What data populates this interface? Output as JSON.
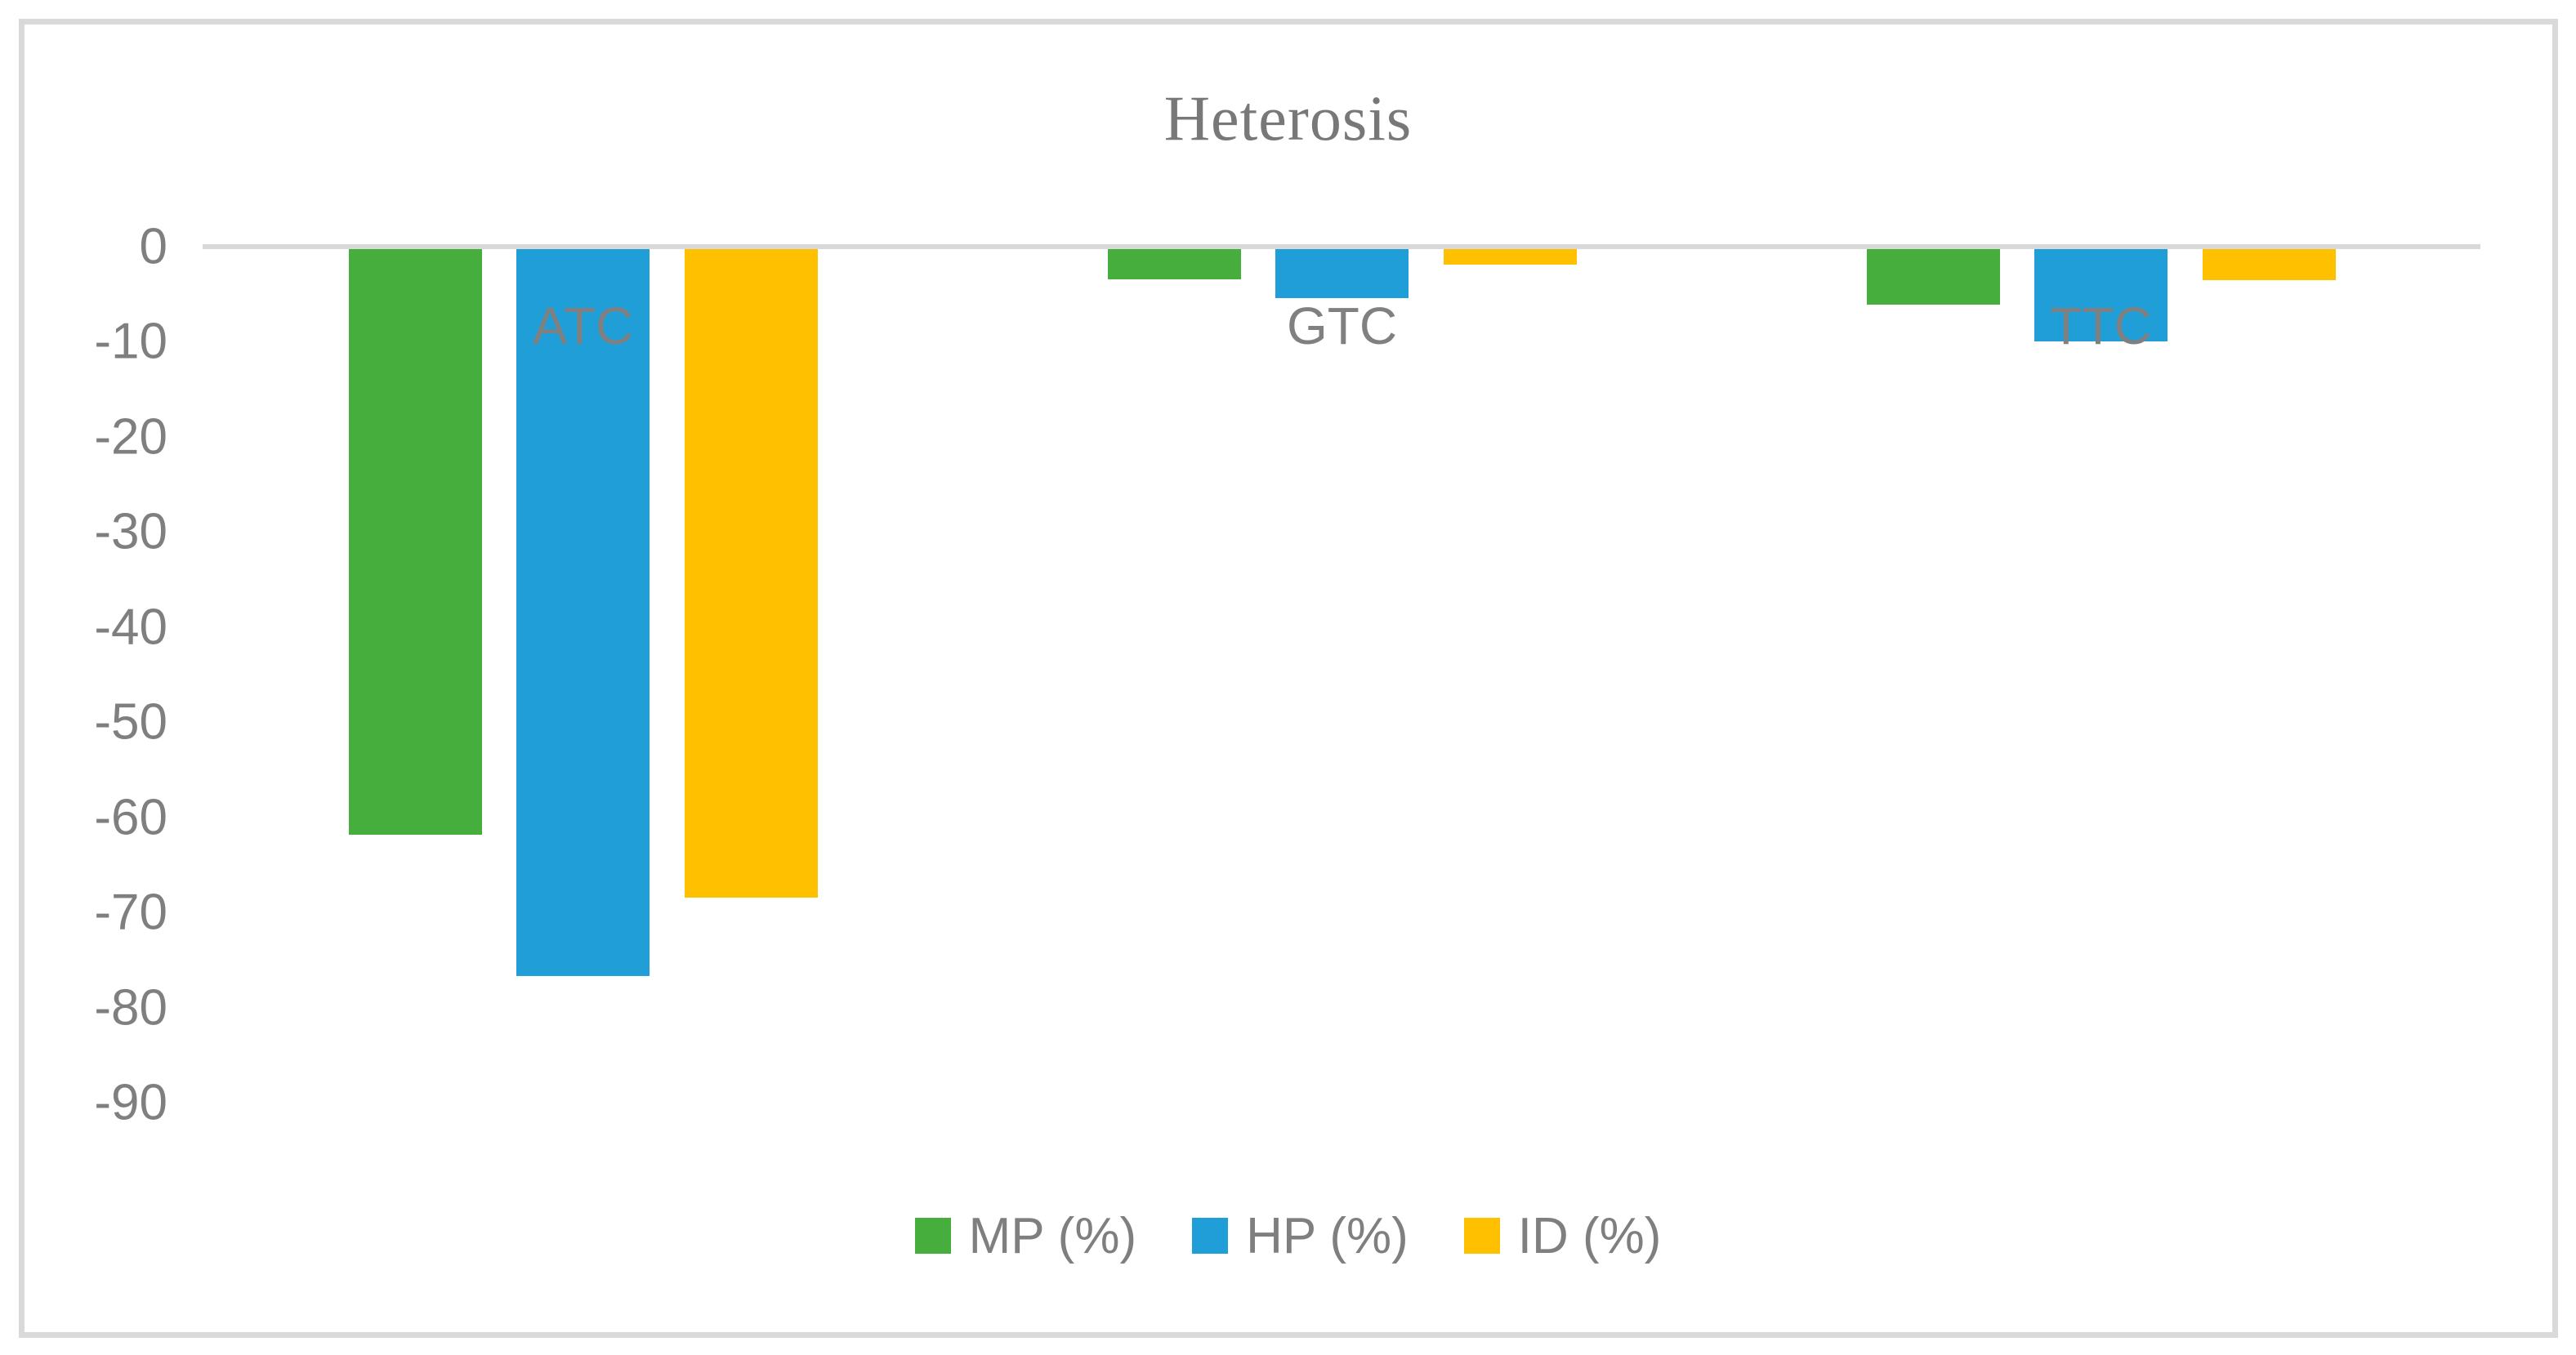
{
  "title": "Heterosis",
  "chart_data": {
    "type": "bar",
    "title": "Heterosis",
    "categories": [
      "ATC",
      "GTC",
      "TTC"
    ],
    "series": [
      {
        "name": "MP (%)",
        "color": "#46AE3C",
        "values": [
          -61.8,
          -3.4,
          -6.1
        ]
      },
      {
        "name": "HP (%)",
        "color": "#1F9ED8",
        "values": [
          -76.7,
          -5.4,
          -10.0
        ]
      },
      {
        "name": "ID (%)",
        "color": "#FFC000",
        "values": [
          -68.4,
          -1.9,
          -3.5
        ]
      }
    ],
    "ylim": [
      -90,
      0
    ],
    "yticks": [
      0,
      -10,
      -20,
      -30,
      -40,
      -50,
      -60,
      -70,
      -80,
      -90
    ],
    "ytick_labels": [
      "0",
      "-10",
      "-20",
      "-30",
      "-40",
      "-50",
      "-60",
      "-70",
      "-80",
      "-90"
    ],
    "grid": false,
    "legend_position": "bottom",
    "axis_color": "#D9D9D9",
    "text_color": "#7F7F7F",
    "frame_color": "#D9D9D9"
  },
  "legend": {
    "items": [
      {
        "label": "MP (%)"
      },
      {
        "label": "HP (%)"
      },
      {
        "label": "ID (%)"
      }
    ]
  }
}
